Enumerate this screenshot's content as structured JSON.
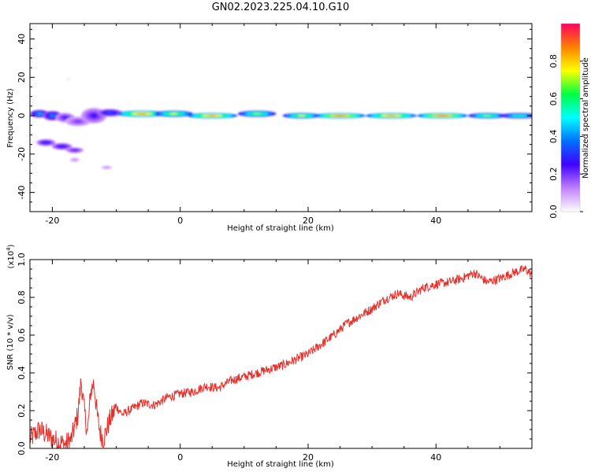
{
  "title": "GN02.2023.225.04.10.G10",
  "chart_data": [
    {
      "type": "heatmap",
      "xlabel": "Height of straight line (km)",
      "ylabel": "Frequency (Hz)",
      "xlim": [
        -23.5,
        55
      ],
      "ylim": [
        -50,
        48
      ],
      "xticks": [
        -20,
        0,
        20,
        40
      ],
      "yticks": [
        -40,
        -20,
        0,
        20,
        40
      ],
      "colorbar": {
        "label": "Normalized spectral amplitude",
        "range": [
          0,
          1
        ],
        "ticks": [
          "0.0",
          "0.2",
          "0.4",
          "0.6",
          "0.8"
        ],
        "colors": [
          "#ffffff",
          "#c080ff",
          "#4000ff",
          "#0070ff",
          "#00ffff",
          "#00ff40",
          "#ffff00",
          "#ff8000",
          "#ff0060"
        ]
      },
      "blobs": [
        {
          "x": -22,
          "y": 1,
          "rx": 1.5,
          "ry": 2,
          "v": 0.45
        },
        {
          "x": -20,
          "y": 0,
          "rx": 1.5,
          "ry": 2.5,
          "v": 0.4
        },
        {
          "x": -18,
          "y": -1,
          "rx": 1.5,
          "ry": 2.5,
          "v": 0.25
        },
        {
          "x": -16,
          "y": -3,
          "rx": 2,
          "ry": 2.5,
          "v": 0.2
        },
        {
          "x": -13.5,
          "y": 0,
          "rx": 2,
          "ry": 4,
          "v": 0.25
        },
        {
          "x": -11,
          "y": 1.5,
          "rx": 2,
          "ry": 2,
          "v": 0.35
        },
        {
          "x": -6,
          "y": 1,
          "rx": 4,
          "ry": 1.6,
          "v": 0.9
        },
        {
          "x": -1,
          "y": 1,
          "rx": 3,
          "ry": 1.6,
          "v": 0.75
        },
        {
          "x": 5,
          "y": 0,
          "rx": 4,
          "ry": 1.4,
          "v": 0.9
        },
        {
          "x": 12,
          "y": 1,
          "rx": 3,
          "ry": 1.6,
          "v": 0.7
        },
        {
          "x": 19,
          "y": 0,
          "rx": 3,
          "ry": 1.4,
          "v": 0.75
        },
        {
          "x": 25,
          "y": 0,
          "rx": 4,
          "ry": 1.4,
          "v": 0.95
        },
        {
          "x": 33,
          "y": 0,
          "rx": 4,
          "ry": 1.4,
          "v": 0.9
        },
        {
          "x": 41,
          "y": 0,
          "rx": 4,
          "ry": 1.4,
          "v": 0.95
        },
        {
          "x": 48,
          "y": 0,
          "rx": 3,
          "ry": 1.4,
          "v": 0.7
        },
        {
          "x": 53,
          "y": 0,
          "rx": 3,
          "ry": 1.4,
          "v": 0.6
        },
        {
          "x": -21,
          "y": -14,
          "rx": 1.5,
          "ry": 1.8,
          "v": 0.3
        },
        {
          "x": -18.5,
          "y": -16,
          "rx": 1.6,
          "ry": 1.8,
          "v": 0.3
        },
        {
          "x": -16.5,
          "y": -18,
          "rx": 1.4,
          "ry": 1.5,
          "v": 0.25
        },
        {
          "x": -16.5,
          "y": -23,
          "rx": 0.8,
          "ry": 1.2,
          "v": 0.12
        },
        {
          "x": -11.5,
          "y": -27,
          "rx": 0.9,
          "ry": 1,
          "v": 0.12
        },
        {
          "x": -17.5,
          "y": 19,
          "rx": 0.3,
          "ry": 0.5,
          "v": 0.05
        }
      ]
    },
    {
      "type": "line",
      "xlabel": "Height of straight line (km)",
      "ylabel": "SNR (10 * v/v)",
      "yscale_label": "(x10",
      "yscale_exp": "4",
      "yscale_close": ")",
      "xlim": [
        -23.5,
        55
      ],
      "ylim": [
        0,
        1.0
      ],
      "xticks": [
        -20,
        0,
        20,
        40
      ],
      "yticks": [
        "0.0",
        "0.2",
        "0.4",
        "0.6",
        "0.8",
        "1.0"
      ],
      "series": [
        {
          "color": "#e8302a",
          "x": [
            -23.5,
            -22,
            -20,
            -18,
            -17,
            -16,
            -15.5,
            -15,
            -14.5,
            -14,
            -13.5,
            -13,
            -12.5,
            -12,
            -11,
            -10,
            -9,
            -8,
            -6,
            -4,
            -2,
            0,
            2,
            4,
            6,
            8,
            10,
            12,
            14,
            16,
            18,
            20,
            22,
            24,
            26,
            28,
            30,
            32,
            34,
            36,
            38,
            40,
            42,
            44,
            46,
            48,
            50,
            52,
            54,
            55
          ],
          "y": [
            0.05,
            0.1,
            0.05,
            0.02,
            0.05,
            0.18,
            0.36,
            0.2,
            0.08,
            0.3,
            0.35,
            0.18,
            0.08,
            0.05,
            0.15,
            0.22,
            0.18,
            0.2,
            0.24,
            0.23,
            0.27,
            0.29,
            0.3,
            0.33,
            0.32,
            0.36,
            0.38,
            0.4,
            0.42,
            0.44,
            0.47,
            0.5,
            0.55,
            0.6,
            0.66,
            0.7,
            0.74,
            0.79,
            0.82,
            0.8,
            0.85,
            0.87,
            0.88,
            0.9,
            0.93,
            0.88,
            0.9,
            0.93,
            0.95,
            0.92
          ]
        }
      ]
    }
  ]
}
